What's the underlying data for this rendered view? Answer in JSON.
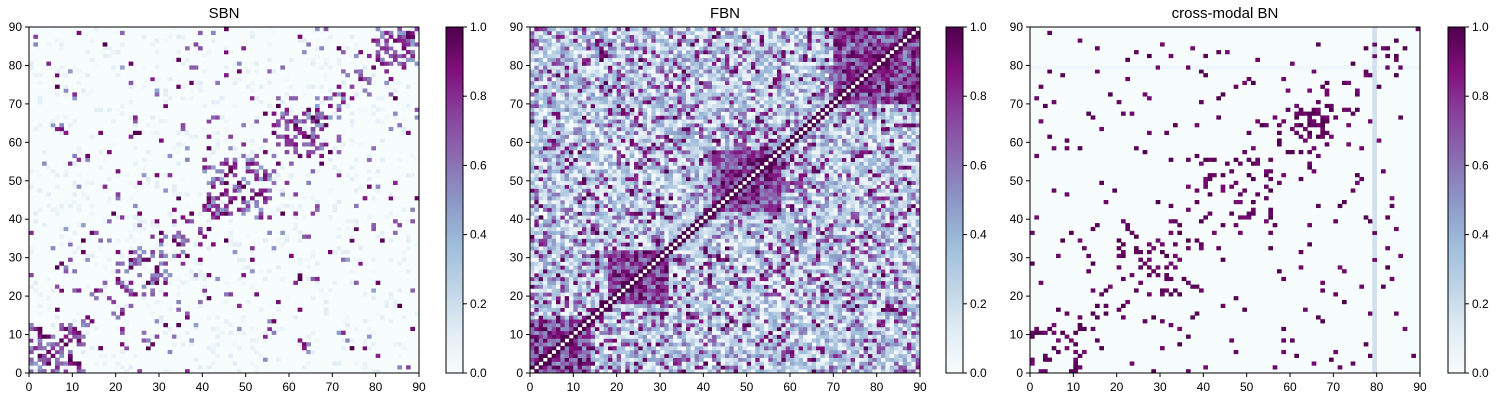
{
  "colormap": {
    "name": "BuPu",
    "stops": [
      "#f7fcfd",
      "#e0ecf4",
      "#bfd3e6",
      "#9ebcda",
      "#8c96c6",
      "#8c6bb1",
      "#88419d",
      "#810f7c",
      "#4d004b"
    ]
  },
  "chart_data": [
    {
      "type": "heatmap",
      "title": "SBN",
      "size": 90,
      "xlim": [
        0,
        90
      ],
      "ylim": [
        0,
        90
      ],
      "xticks": [
        0,
        10,
        20,
        30,
        40,
        50,
        60,
        70,
        80,
        90
      ],
      "yticks": [
        0,
        10,
        20,
        30,
        40,
        50,
        60,
        70,
        80,
        90
      ],
      "colorbar": {
        "range": [
          0.0,
          1.0
        ],
        "ticks": [
          "0.0",
          "0.2",
          "0.4",
          "0.6",
          "0.8",
          "1.0"
        ]
      },
      "pattern": "sparse structural connectivity: background ~0, scattered strong links near diagonal blocks",
      "seed": 11,
      "density": 0.07,
      "blocks": [
        [
          40,
          56,
          40,
          56
        ],
        [
          56,
          68,
          56,
          68
        ],
        [
          20,
          32,
          20,
          32
        ],
        [
          80,
          90,
          80,
          90
        ],
        [
          0,
          12,
          0,
          12
        ]
      ]
    },
    {
      "type": "heatmap",
      "title": "FBN",
      "size": 90,
      "xlim": [
        0,
        90
      ],
      "ylim": [
        0,
        90
      ],
      "xticks": [
        0,
        10,
        20,
        30,
        40,
        50,
        60,
        70,
        80,
        90
      ],
      "yticks": [
        0,
        10,
        20,
        30,
        40,
        50,
        60,
        70,
        80,
        90
      ],
      "colorbar": {
        "range": [
          0.0,
          1.0
        ],
        "ticks": [
          "0.0",
          "0.2",
          "0.4",
          "0.6",
          "0.8",
          "1.0"
        ]
      },
      "pattern": "dense functional connectivity: strong diagonal, block around 42-58 and 18-32",
      "seed": 23,
      "density": 0.6,
      "blocks": [
        [
          42,
          58,
          42,
          58
        ],
        [
          18,
          32,
          18,
          32
        ],
        [
          70,
          90,
          70,
          90
        ],
        [
          0,
          14,
          0,
          14
        ]
      ]
    },
    {
      "type": "heatmap",
      "title": "cross-modal BN",
      "size": 90,
      "xlim": [
        0,
        90
      ],
      "ylim": [
        0,
        90
      ],
      "xticks": [
        0,
        10,
        20,
        30,
        40,
        50,
        60,
        70,
        80,
        90
      ],
      "yticks": [
        0,
        10,
        20,
        30,
        40,
        50,
        60,
        70,
        80,
        90
      ],
      "colorbar": {
        "range": [
          0.0,
          1.0
        ],
        "ticks": [
          "0.0",
          "0.2",
          "0.4",
          "0.6",
          "0.8",
          "1.0"
        ]
      },
      "pattern": "binary-like sparse links (~0 or 1), faint vertical column near x=79",
      "seed": 37,
      "density": 0.06,
      "stripe_column": 79,
      "blocks": [
        [
          40,
          56,
          40,
          56
        ],
        [
          56,
          70,
          56,
          70
        ],
        [
          20,
          34,
          20,
          34
        ],
        [
          0,
          12,
          0,
          12
        ]
      ]
    }
  ]
}
